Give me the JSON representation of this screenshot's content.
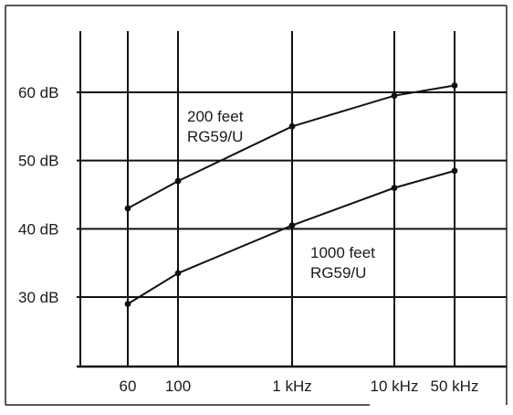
{
  "chart_data": {
    "type": "line",
    "title": "",
    "xlabel": "",
    "ylabel": "",
    "x_scale": "categorical",
    "categories": [
      "60",
      "100",
      "1 kHz",
      "10 kHz",
      "50 kHz"
    ],
    "y_ticks": [
      {
        "value": 30,
        "label": "30 dB"
      },
      {
        "value": 40,
        "label": "40 dB"
      },
      {
        "value": 50,
        "label": "50 dB"
      },
      {
        "value": 60,
        "label": "60 dB"
      }
    ],
    "ylim": [
      20,
      68
    ],
    "grid": true,
    "series": [
      {
        "name": [
          "200 feet",
          "RG59/U"
        ],
        "points": [
          {
            "x": "60",
            "y": 43
          },
          {
            "x": "100",
            "y": 47
          },
          {
            "x": "1 kHz",
            "y": 55
          },
          {
            "x": "10 kHz",
            "y": 59.5
          },
          {
            "x": "50 kHz",
            "y": 61
          }
        ]
      },
      {
        "name": [
          "1000 feet",
          "RG59/U"
        ],
        "points": [
          {
            "x": "60",
            "y": 29
          },
          {
            "x": "100",
            "y": 33.5
          },
          {
            "x": "1 kHz",
            "y": 40.5
          },
          {
            "x": "10 kHz",
            "y": 46
          },
          {
            "x": "50 kHz",
            "y": 48.5
          }
        ]
      }
    ]
  }
}
